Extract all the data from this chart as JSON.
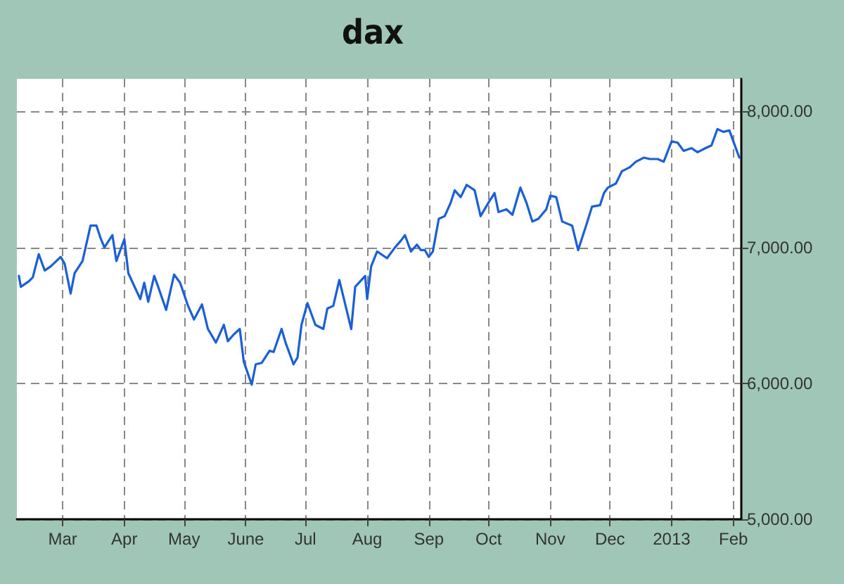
{
  "chart_data": {
    "type": "line",
    "title": "dax",
    "color": "#1a5fd6",
    "grid": true,
    "marker": "none",
    "line_style": "solid",
    "xlim": [
      "2012-02-07",
      "2013-02-05"
    ],
    "xticks": [
      {
        "value": "2012-03-01",
        "label": "Mar"
      },
      {
        "value": "2012-04-01",
        "label": "Apr"
      },
      {
        "value": "2012-05-01",
        "label": "May"
      },
      {
        "value": "2012-06-01",
        "label": "June"
      },
      {
        "value": "2012-07-01",
        "label": "Jul"
      },
      {
        "value": "2012-08-01",
        "label": "Aug"
      },
      {
        "value": "2012-09-01",
        "label": "Sep"
      },
      {
        "value": "2012-10-01",
        "label": "Oct"
      },
      {
        "value": "2012-11-01",
        "label": "Nov"
      },
      {
        "value": "2012-12-01",
        "label": "Dec"
      },
      {
        "value": "2013-01-01",
        "label": "2013"
      },
      {
        "value": "2013-02-01",
        "label": "Feb"
      }
    ],
    "ylim": [
      5000,
      8240
    ],
    "yticks": [
      {
        "value": 5000,
        "label": "5,000.00"
      },
      {
        "value": 6000,
        "label": "6,000.00"
      },
      {
        "value": 7000,
        "label": "7,000.00"
      },
      {
        "value": 8000,
        "label": "8,000.00"
      }
    ],
    "x": [
      "2012-02-08",
      "2012-02-09",
      "2012-02-13",
      "2012-02-15",
      "2012-02-18",
      "2012-02-21",
      "2012-02-24",
      "2012-02-29",
      "2012-03-02",
      "2012-03-05",
      "2012-03-07",
      "2012-03-11",
      "2012-03-15",
      "2012-03-18",
      "2012-03-20",
      "2012-03-22",
      "2012-03-26",
      "2012-03-28",
      "2012-04-01",
      "2012-04-03",
      "2012-04-09",
      "2012-04-11",
      "2012-04-13",
      "2012-04-16",
      "2012-04-18",
      "2012-04-22",
      "2012-04-26",
      "2012-04-29",
      "2012-05-03",
      "2012-05-06",
      "2012-05-10",
      "2012-05-13",
      "2012-05-17",
      "2012-05-21",
      "2012-05-23",
      "2012-05-26",
      "2012-05-29",
      "2012-05-31",
      "2012-06-04",
      "2012-06-06",
      "2012-06-09",
      "2012-06-13",
      "2012-06-15",
      "2012-06-19",
      "2012-06-21",
      "2012-06-25",
      "2012-06-27",
      "2012-06-29",
      "2012-07-02",
      "2012-07-06",
      "2012-07-10",
      "2012-07-12",
      "2012-07-15",
      "2012-07-18",
      "2012-07-22",
      "2012-07-24",
      "2012-07-26",
      "2012-07-31",
      "2012-08-01",
      "2012-08-03",
      "2012-08-06",
      "2012-08-11",
      "2012-08-15",
      "2012-08-18",
      "2012-08-20",
      "2012-08-23",
      "2012-08-26",
      "2012-08-28",
      "2012-08-30",
      "2012-09-01",
      "2012-09-03",
      "2012-09-06",
      "2012-09-09",
      "2012-09-12",
      "2012-09-14",
      "2012-09-17",
      "2012-09-20",
      "2012-09-24",
      "2012-09-27",
      "2012-10-01",
      "2012-10-04",
      "2012-10-06",
      "2012-10-10",
      "2012-10-13",
      "2012-10-17",
      "2012-10-20",
      "2012-10-23",
      "2012-10-26",
      "2012-10-30",
      "2012-11-01",
      "2012-11-04",
      "2012-11-07",
      "2012-11-12",
      "2012-11-15",
      "2012-11-19",
      "2012-11-22",
      "2012-11-26",
      "2012-11-28",
      "2012-11-30",
      "2012-12-04",
      "2012-12-07",
      "2012-12-11",
      "2012-12-14",
      "2012-12-18",
      "2012-12-21",
      "2012-12-25",
      "2012-12-28",
      "2013-01-01",
      "2013-01-04",
      "2013-01-07",
      "2013-01-11",
      "2013-01-14",
      "2013-01-18",
      "2013-01-21",
      "2013-01-24",
      "2013-01-27",
      "2013-01-30",
      "2013-02-01",
      "2013-02-04"
    ],
    "values": [
      6790,
      6710,
      6750,
      6780,
      6950,
      6830,
      6860,
      6930,
      6880,
      6660,
      6810,
      6900,
      7160,
      7160,
      7070,
      7000,
      7090,
      6900,
      7060,
      6810,
      6620,
      6740,
      6600,
      6790,
      6710,
      6540,
      6800,
      6740,
      6570,
      6470,
      6580,
      6400,
      6300,
      6430,
      6310,
      6360,
      6400,
      6160,
      5990,
      6140,
      6150,
      6240,
      6230,
      6400,
      6300,
      6140,
      6190,
      6430,
      6590,
      6430,
      6400,
      6550,
      6570,
      6760,
      6520,
      6400,
      6710,
      6790,
      6620,
      6860,
      6970,
      6920,
      7000,
      7050,
      7090,
      6970,
      7020,
      6980,
      6980,
      6930,
      6970,
      7210,
      7230,
      7330,
      7420,
      7370,
      7460,
      7420,
      7230,
      7330,
      7400,
      7260,
      7280,
      7240,
      7440,
      7330,
      7190,
      7210,
      7280,
      7380,
      7370,
      7190,
      7160,
      6980,
      7160,
      7300,
      7310,
      7400,
      7440,
      7470,
      7560,
      7590,
      7630,
      7660,
      7650,
      7650,
      7630,
      7780,
      7770,
      7710,
      7730,
      7700,
      7730,
      7750,
      7870,
      7850,
      7860,
      7780,
      7660
    ]
  }
}
